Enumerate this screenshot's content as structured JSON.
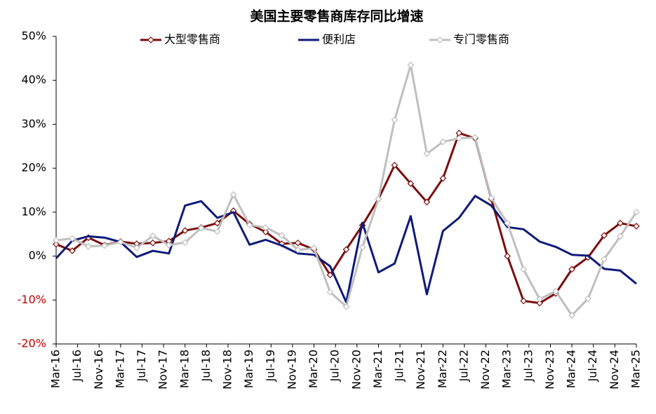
{
  "chart_data": {
    "type": "line",
    "title": "美国主要零售商库存同比增速",
    "x": [
      "2016-03",
      "2016-06",
      "2016-09",
      "2016-12",
      "2017-03",
      "2017-06",
      "2017-09",
      "2017-12",
      "2018-03",
      "2018-06",
      "2018-09",
      "2018-12",
      "2019-03",
      "2019-06",
      "2019-09",
      "2019-12",
      "2020-03",
      "2020-06",
      "2020-09",
      "2020-12",
      "2021-03",
      "2021-06",
      "2021-09",
      "2021-12",
      "2022-03",
      "2022-06",
      "2022-09",
      "2022-12",
      "2023-03",
      "2023-06",
      "2023-09",
      "2023-12",
      "2024-03",
      "2024-06",
      "2024-09",
      "2024-12",
      "2025-03"
    ],
    "xticks": [
      {
        "value": "2016-03",
        "label": "Mar-16"
      },
      {
        "value": "2016-07",
        "label": "Jul-16"
      },
      {
        "value": "2016-11",
        "label": "Nov-16"
      },
      {
        "value": "2017-03",
        "label": "Mar-17"
      },
      {
        "value": "2017-07",
        "label": "Jul-17"
      },
      {
        "value": "2017-11",
        "label": "Nov-17"
      },
      {
        "value": "2018-03",
        "label": "Mar-18"
      },
      {
        "value": "2018-07",
        "label": "Jul-18"
      },
      {
        "value": "2018-11",
        "label": "Nov-18"
      },
      {
        "value": "2019-03",
        "label": "Mar-19"
      },
      {
        "value": "2019-07",
        "label": "Jul-19"
      },
      {
        "value": "2019-11",
        "label": "Nov-19"
      },
      {
        "value": "2020-03",
        "label": "Mar-20"
      },
      {
        "value": "2020-07",
        "label": "Jul-20"
      },
      {
        "value": "2020-11",
        "label": "Nov-20"
      },
      {
        "value": "2021-03",
        "label": "Mar-21"
      },
      {
        "value": "2021-07",
        "label": "Jul-21"
      },
      {
        "value": "2021-11",
        "label": "Nov-21"
      },
      {
        "value": "2022-03",
        "label": "Mar-22"
      },
      {
        "value": "2022-07",
        "label": "Jul-22"
      },
      {
        "value": "2022-11",
        "label": "Nov-22"
      },
      {
        "value": "2023-03",
        "label": "Mar-23"
      },
      {
        "value": "2023-07",
        "label": "Jul-23"
      },
      {
        "value": "2023-11",
        "label": "Nov-23"
      },
      {
        "value": "2024-03",
        "label": "Mar-24"
      },
      {
        "value": "2024-07",
        "label": "Jul-24"
      },
      {
        "value": "2024-11",
        "label": "Nov-24"
      },
      {
        "value": "2025-03",
        "label": "Mar-25"
      }
    ],
    "ylim": [
      -20,
      50
    ],
    "yticks": [
      {
        "value": -20,
        "label": "-20%"
      },
      {
        "value": -10,
        "label": "-10%"
      },
      {
        "value": 0,
        "label": "0%"
      },
      {
        "value": 10,
        "label": "10%"
      },
      {
        "value": 20,
        "label": "20%"
      },
      {
        "value": 30,
        "label": "30%"
      },
      {
        "value": 40,
        "label": "40%"
      },
      {
        "value": 50,
        "label": "50%"
      }
    ],
    "ytick_negative_color": "#c00000",
    "series": [
      {
        "name": "大型零售商",
        "color": "#7b0c0c",
        "marker": "diamond",
        "values": [
          2.7,
          1.2,
          4.2,
          2.5,
          3.3,
          2.8,
          3.0,
          3.4,
          5.8,
          6.5,
          7.5,
          10.3,
          7.3,
          5.5,
          2.8,
          3.0,
          1.5,
          -4.3,
          1.5,
          7.0,
          13,
          20.7,
          16.5,
          12.3,
          17.7,
          28,
          26.8,
          13,
          0,
          -10.2,
          -10.7,
          -8.5,
          -3,
          -0.3,
          4.7,
          7.5,
          6.8
        ]
      },
      {
        "name": "便利店",
        "color": "#0d1a7a",
        "marker": "none",
        "values": [
          -0.5,
          3.5,
          4.5,
          4.2,
          3.2,
          -0.2,
          1.2,
          0.6,
          11.5,
          12.5,
          8.7,
          10,
          2.6,
          3.7,
          2.4,
          0.6,
          0.3,
          -2.3,
          -10.5,
          7.6,
          -3.7,
          -1.7,
          9.1,
          -8.7,
          5.7,
          8.7,
          13.7,
          11.5,
          6.6,
          6.1,
          3.3,
          2.1,
          0.3,
          0.1,
          -2.9,
          -3.3,
          -6.3
        ]
      },
      {
        "name": "专门零售商",
        "color": "#bfbfbf",
        "marker": "diamond",
        "values": [
          3.6,
          4,
          2.2,
          2.4,
          3.2,
          1.9,
          4.6,
          2.5,
          3.1,
          6.4,
          5.6,
          14,
          7.1,
          6.5,
          4.7,
          1.4,
          1.8,
          -8.2,
          -11.5,
          2,
          13,
          31,
          43.5,
          23.3,
          26,
          26.8,
          27,
          13.2,
          7.5,
          -3,
          -9.8,
          -8,
          -13.5,
          -9.7,
          -0.7,
          4.5,
          10
        ]
      }
    ]
  }
}
